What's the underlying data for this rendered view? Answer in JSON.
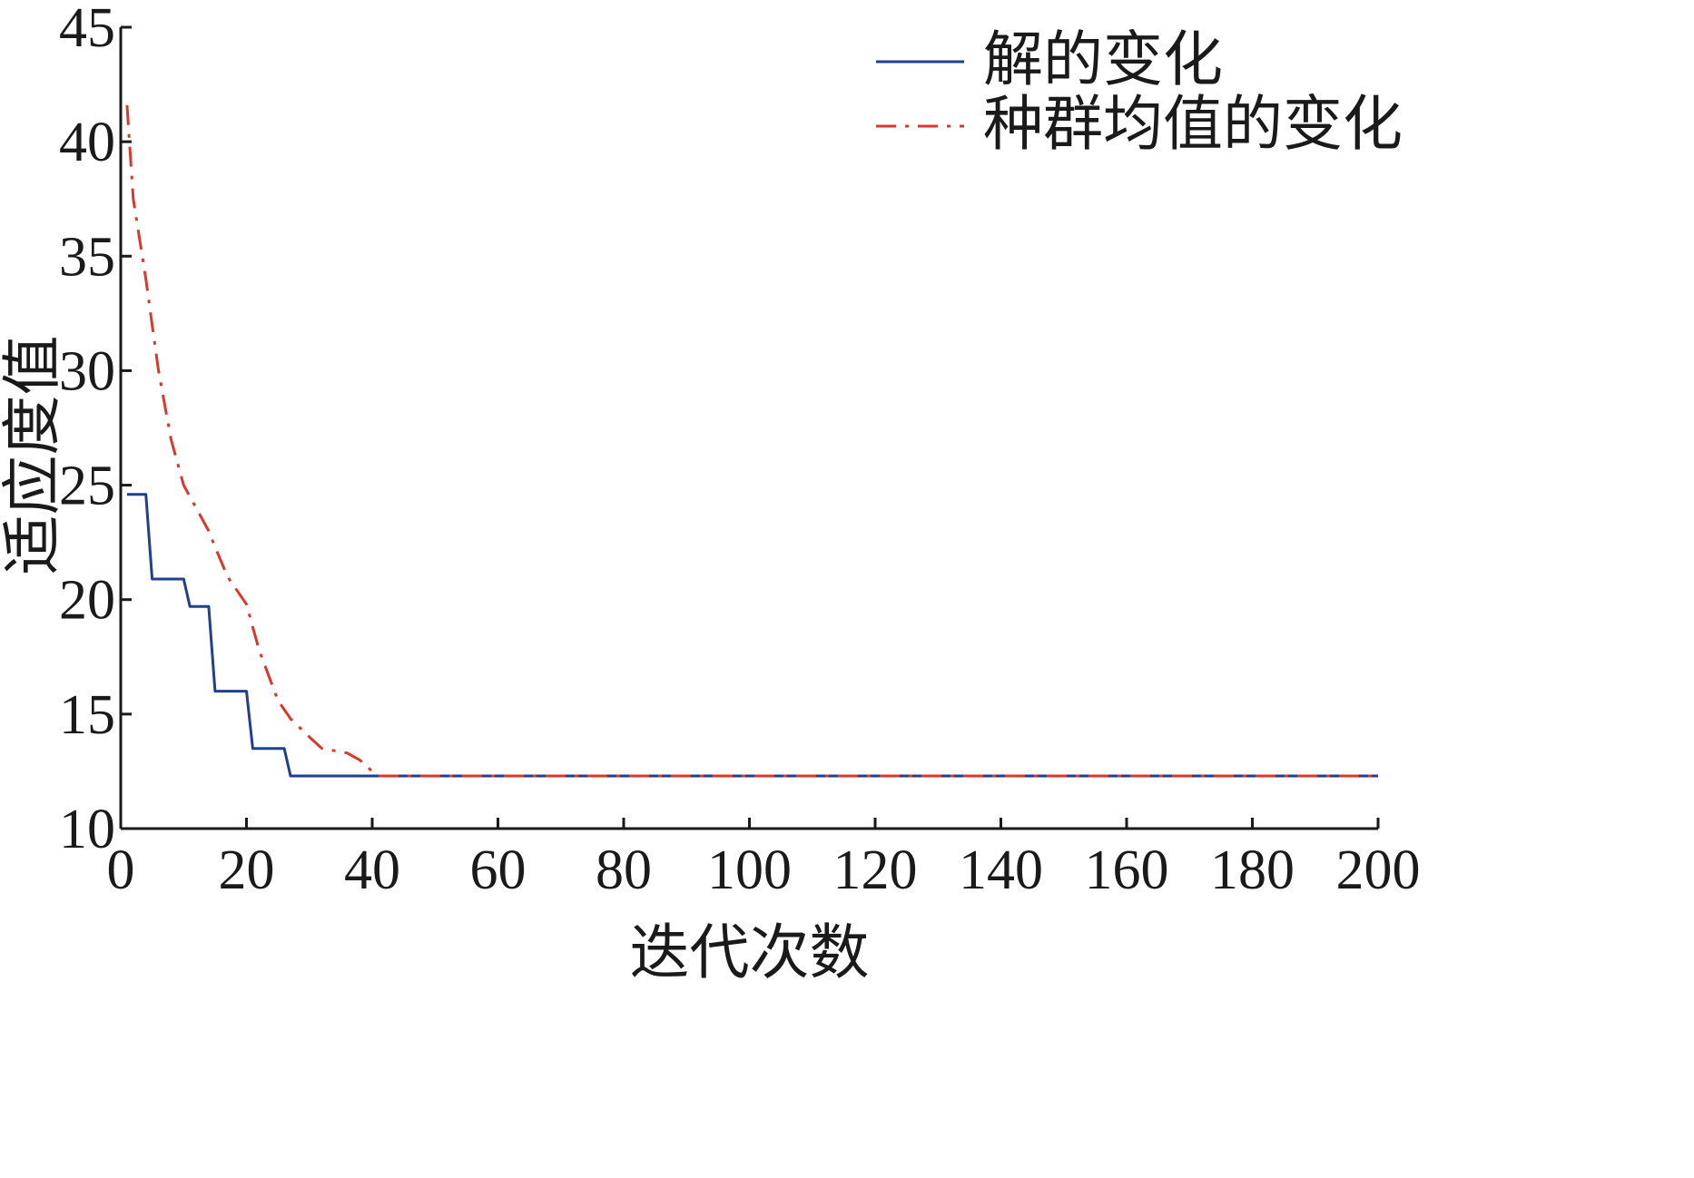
{
  "chart_data": {
    "type": "line",
    "xlabel": "迭代次数",
    "ylabel": "适应度值",
    "xlim": [
      0,
      200
    ],
    "ylim": [
      10,
      45
    ],
    "xticks": [
      0,
      20,
      40,
      60,
      80,
      100,
      120,
      140,
      160,
      180,
      200
    ],
    "yticks": [
      10,
      15,
      20,
      25,
      30,
      35,
      40,
      45
    ],
    "grid": false,
    "legend_position": "top-right",
    "series": [
      {
        "name": "解的变化",
        "color": "#1f3f8f",
        "line_style": "solid",
        "x": [
          1,
          4,
          5,
          10,
          11,
          14,
          15,
          20,
          21,
          26,
          27,
          200
        ],
        "y": [
          24.6,
          24.6,
          20.9,
          20.9,
          19.7,
          19.7,
          16.0,
          16.0,
          13.5,
          13.5,
          12.3,
          12.3
        ]
      },
      {
        "name": "种群均值的变化",
        "color": "#d9382b",
        "line_style": "dash-dot",
        "x": [
          1,
          2,
          4,
          5,
          6,
          8,
          10,
          12,
          14,
          15,
          17,
          20,
          22,
          25,
          27,
          30,
          32,
          34,
          36,
          38,
          40,
          41,
          50,
          100,
          150,
          200
        ],
        "y": [
          41.6,
          37.5,
          34.0,
          32.0,
          30.0,
          27.0,
          25.0,
          24.0,
          23.0,
          22.3,
          21.0,
          19.8,
          17.8,
          15.6,
          14.8,
          14.0,
          13.5,
          13.4,
          13.3,
          13.0,
          12.5,
          12.3,
          12.3,
          12.3,
          12.3,
          12.3
        ]
      }
    ]
  }
}
